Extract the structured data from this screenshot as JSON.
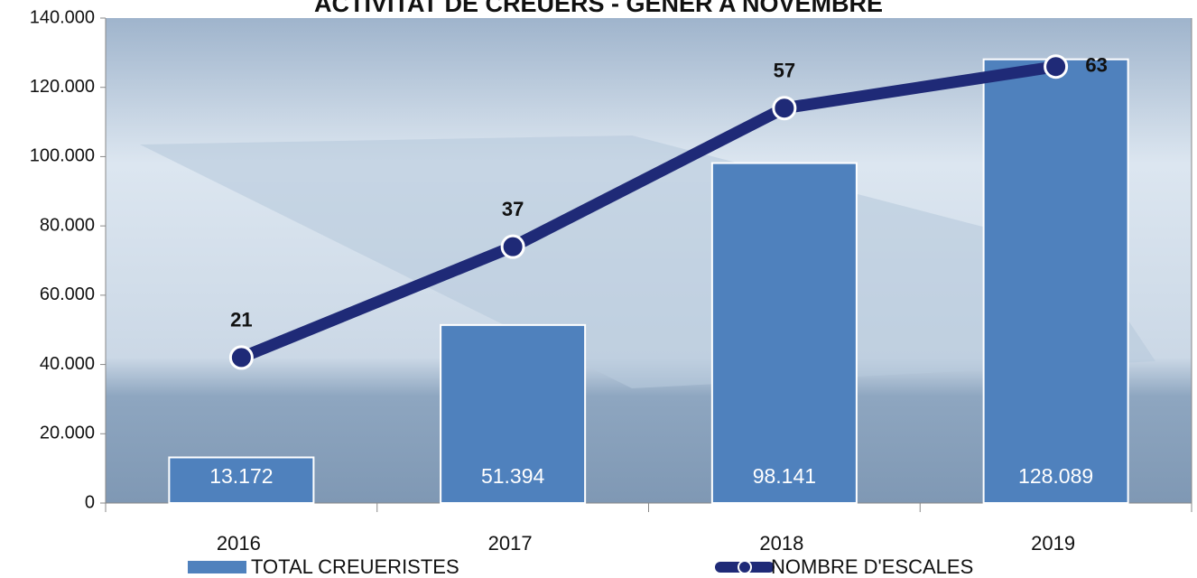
{
  "chart_data": {
    "type": "bar-line",
    "title": "ACTIVITAT DE CREUERS - GENER A NOVEMBRE",
    "categories": [
      "2016",
      "2017",
      "2018",
      "2019"
    ],
    "series": [
      {
        "name": "TOTAL CREUERISTES",
        "type": "bar",
        "color": "#4f81bd",
        "values": [
          13172,
          51394,
          98141,
          128089
        ],
        "value_labels": [
          "13.172",
          "51.394",
          "98.141",
          "128.089"
        ]
      },
      {
        "name": "NOMBRE D'ESCALES",
        "type": "line",
        "axis": "y2",
        "color": "#1f2a77",
        "values": [
          21,
          37,
          57,
          63
        ]
      }
    ],
    "ylim": [
      0,
      140000
    ],
    "yticks": [
      0,
      {
        "value": 20000,
        "label": "20.000"
      },
      {
        "value": 40000,
        "label": "40.000"
      },
      {
        "value": 60000,
        "label": "60.000"
      },
      {
        "value": 80000,
        "label": "80.000"
      },
      {
        "value": 100000,
        "label": "100.000"
      },
      {
        "value": 120000,
        "label": "120.000"
      },
      {
        "value": 140000,
        "label": "140.000"
      }
    ],
    "y2lim": [
      0,
      70
    ]
  }
}
